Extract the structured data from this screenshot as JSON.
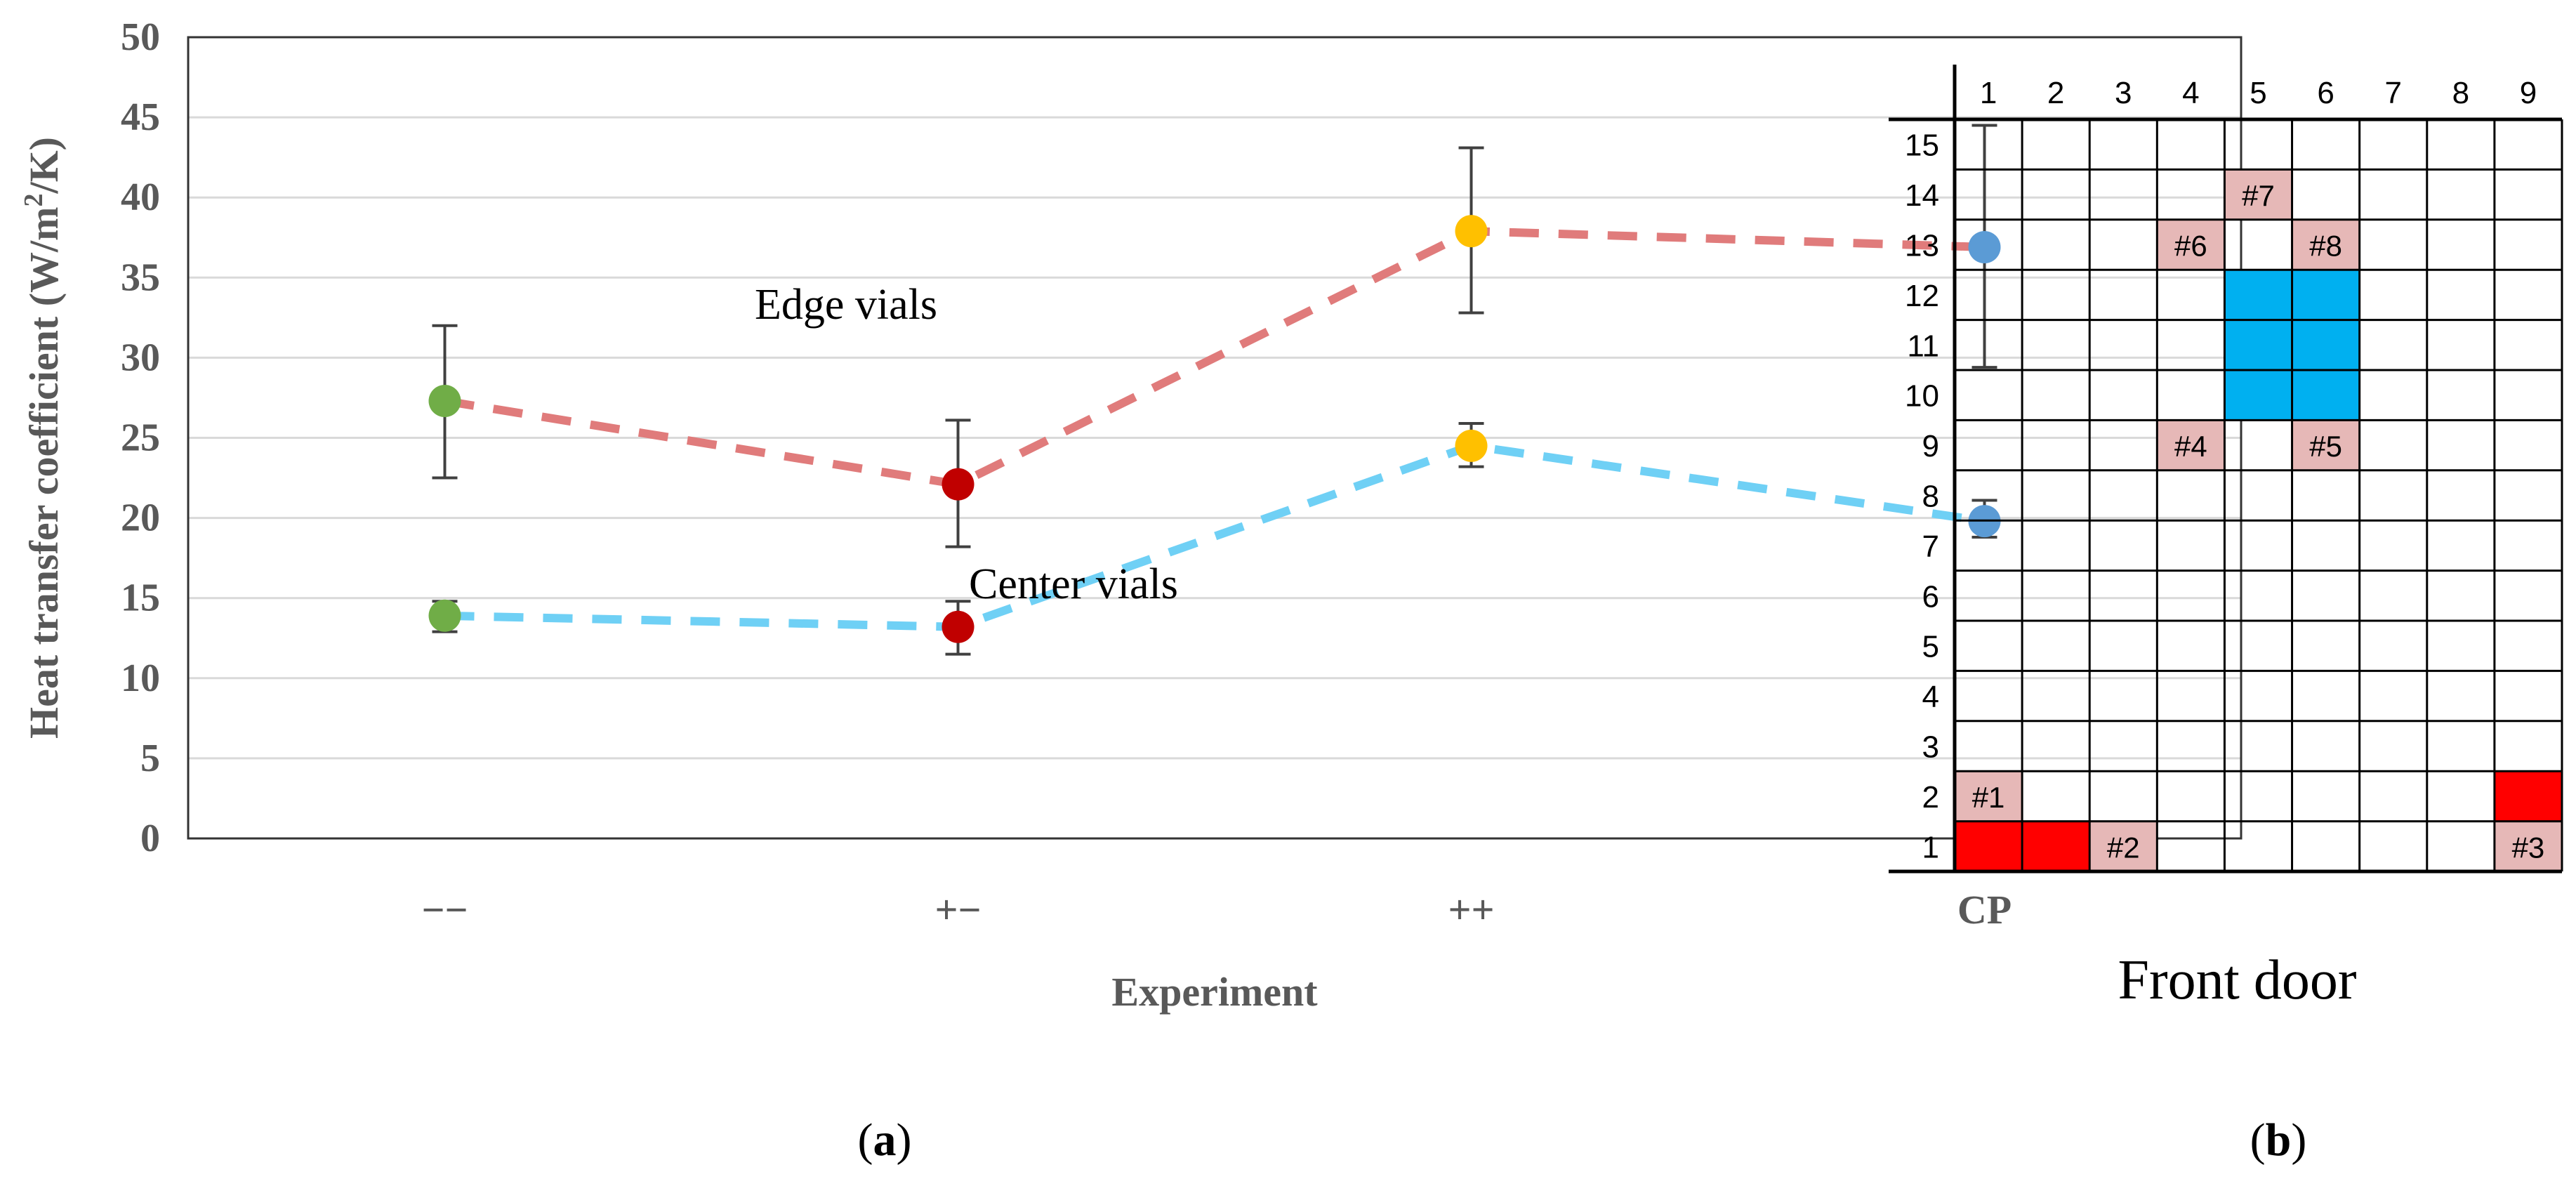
{
  "chart_data": [
    {
      "type": "line",
      "title": "",
      "xlabel": "Experiment",
      "ylabel": "Heat transfer coefficient (W/m²/K)",
      "ylabel_parts": {
        "pre": "Heat transfer coefficient (W/m",
        "sup": "2",
        "post": "/K)"
      },
      "ylim": [
        0,
        50
      ],
      "yticks": [
        0,
        5,
        10,
        15,
        20,
        25,
        30,
        35,
        40,
        45,
        50
      ],
      "grid": true,
      "categories": [
        "−−",
        "+−",
        "++",
        "CP"
      ],
      "point_colors": [
        "#70AD47",
        "#C00000",
        "#FFC000",
        "#5B9BD5"
      ],
      "series": [
        {
          "name": "Edge vials",
          "line_color": "#E07B7B",
          "values": [
            27.3,
            22.1,
            37.9,
            36.9
          ],
          "err_low": [
            22.5,
            18.2,
            32.8,
            29.4
          ],
          "err_high": [
            32.0,
            26.1,
            43.1,
            44.5
          ]
        },
        {
          "name": "Center vials",
          "line_color": "#6FD0F5",
          "values": [
            13.9,
            13.2,
            24.5,
            19.8
          ],
          "err_low": [
            12.9,
            11.5,
            23.2,
            18.8
          ],
          "err_high": [
            14.8,
            14.8,
            25.9,
            21.1
          ]
        }
      ],
      "panel_label": {
        "open": "(",
        "letter": "a",
        "close": ")"
      }
    },
    {
      "type": "table",
      "columns": [
        "1",
        "2",
        "3",
        "4",
        "5",
        "6",
        "7",
        "8",
        "9"
      ],
      "rows": [
        "15",
        "14",
        "13",
        "12",
        "11",
        "10",
        "9",
        "8",
        "7",
        "6",
        "5",
        "4",
        "3",
        "2",
        "1"
      ],
      "colors": {
        "pink": "#E6B8B7",
        "blue": "#00B0F0",
        "red": "#FF0000",
        "empty": "#FFFFFF"
      },
      "cells": [
        {
          "row": "14",
          "col": "5",
          "fill": "pink",
          "label": "#7"
        },
        {
          "row": "13",
          "col": "4",
          "fill": "pink",
          "label": "#6"
        },
        {
          "row": "13",
          "col": "6",
          "fill": "pink",
          "label": "#8"
        },
        {
          "row": "12",
          "col": "5",
          "fill": "blue",
          "label": ""
        },
        {
          "row": "12",
          "col": "6",
          "fill": "blue",
          "label": ""
        },
        {
          "row": "11",
          "col": "5",
          "fill": "blue",
          "label": ""
        },
        {
          "row": "11",
          "col": "6",
          "fill": "blue",
          "label": ""
        },
        {
          "row": "10",
          "col": "5",
          "fill": "blue",
          "label": ""
        },
        {
          "row": "10",
          "col": "6",
          "fill": "blue",
          "label": ""
        },
        {
          "row": "9",
          "col": "4",
          "fill": "pink",
          "label": "#4"
        },
        {
          "row": "9",
          "col": "6",
          "fill": "pink",
          "label": "#5"
        },
        {
          "row": "2",
          "col": "1",
          "fill": "pink",
          "label": "#1"
        },
        {
          "row": "2",
          "col": "9",
          "fill": "red",
          "label": ""
        },
        {
          "row": "1",
          "col": "1",
          "fill": "red",
          "label": ""
        },
        {
          "row": "1",
          "col": "2",
          "fill": "red",
          "label": ""
        },
        {
          "row": "1",
          "col": "3",
          "fill": "pink",
          "label": "#2"
        },
        {
          "row": "1",
          "col": "9",
          "fill": "pink",
          "label": "#3"
        }
      ],
      "caption": "Front door",
      "panel_label": {
        "open": "(",
        "letter": "b",
        "close": ")"
      }
    }
  ]
}
